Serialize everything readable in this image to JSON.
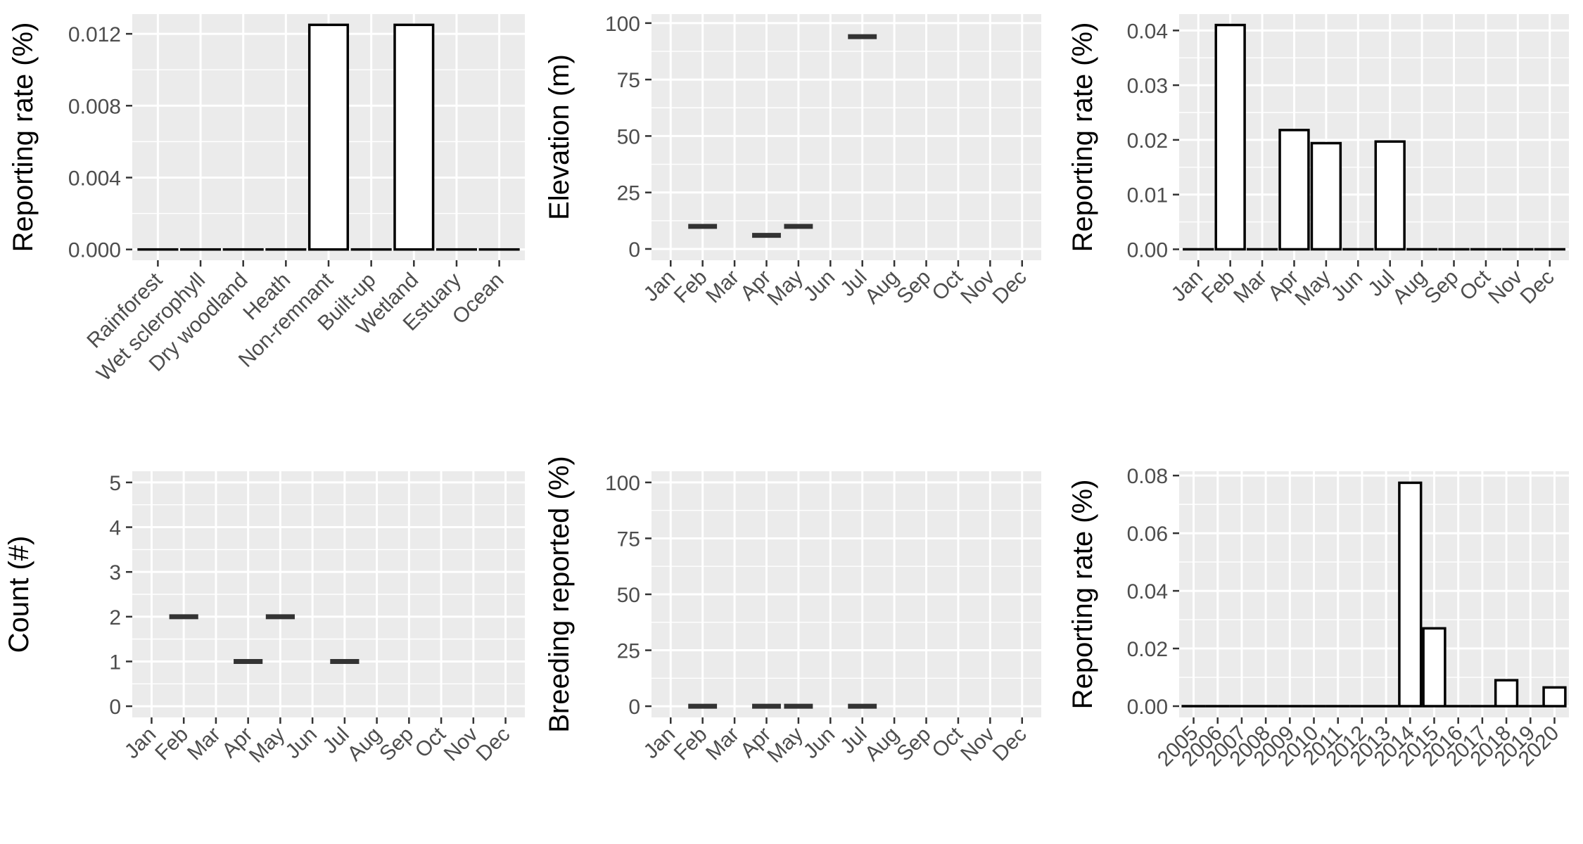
{
  "chart_data": [
    {
      "id": "p1",
      "type": "bar",
      "ylabel": "Reporting rate (%)",
      "categories": [
        "Rainforest",
        "Wet sclerophyll",
        "Dry woodland",
        "Heath",
        "Non-remnant",
        "Built-up",
        "Wetland",
        "Estuary",
        "Ocean"
      ],
      "values": [
        0,
        0,
        0,
        0,
        0.0125,
        0,
        0.0125,
        0,
        0
      ],
      "ylim": [
        -0.0006,
        0.0131
      ],
      "yticks": [
        0.0,
        0.004,
        0.008,
        0.012
      ],
      "ytick_labels": [
        "0.000",
        "0.004",
        "0.008",
        "0.012"
      ],
      "grid": true
    },
    {
      "id": "p2",
      "type": "scatter",
      "marker": "crossbar",
      "ylabel": "Elevation (m)",
      "categories": [
        "Jan",
        "Feb",
        "Mar",
        "Apr",
        "May",
        "Jun",
        "Jul",
        "Aug",
        "Sep",
        "Oct",
        "Nov",
        "Dec"
      ],
      "values": [
        null,
        10,
        null,
        6,
        10,
        null,
        94,
        null,
        null,
        null,
        null,
        null
      ],
      "ylim": [
        -5,
        104
      ],
      "yticks": [
        0,
        25,
        50,
        75,
        100
      ],
      "ytick_labels": [
        "0",
        "25",
        "50",
        "75",
        "100"
      ],
      "grid": true
    },
    {
      "id": "p3",
      "type": "bar",
      "ylabel": "Reporting rate (%)",
      "categories": [
        "Jan",
        "Feb",
        "Mar",
        "Apr",
        "May",
        "Jun",
        "Jul",
        "Aug",
        "Sep",
        "Oct",
        "Nov",
        "Dec"
      ],
      "values": [
        0,
        0.041,
        0,
        0.0218,
        0.0194,
        0,
        0.0197,
        0,
        0,
        0,
        0,
        0
      ],
      "ylim": [
        -0.002,
        0.043
      ],
      "yticks": [
        0.0,
        0.01,
        0.02,
        0.03,
        0.04
      ],
      "ytick_labels": [
        "0.00",
        "0.01",
        "0.02",
        "0.03",
        "0.04"
      ],
      "grid": true
    },
    {
      "id": "p4",
      "type": "scatter",
      "marker": "crossbar",
      "ylabel": "Count (#)",
      "categories": [
        "Jan",
        "Feb",
        "Mar",
        "Apr",
        "May",
        "Jun",
        "Jul",
        "Aug",
        "Sep",
        "Oct",
        "Nov",
        "Dec"
      ],
      "values": [
        null,
        2,
        null,
        1,
        2,
        null,
        1,
        null,
        null,
        null,
        null,
        null
      ],
      "ylim": [
        -0.25,
        5.25
      ],
      "yticks": [
        0,
        1,
        2,
        3,
        4,
        5
      ],
      "ytick_labels": [
        "0",
        "1",
        "2",
        "3",
        "4",
        "5"
      ],
      "grid": true
    },
    {
      "id": "p5",
      "type": "scatter",
      "marker": "crossbar",
      "ylabel": "Breeding reported (%)",
      "categories": [
        "Jan",
        "Feb",
        "Mar",
        "Apr",
        "May",
        "Jun",
        "Jul",
        "Aug",
        "Sep",
        "Oct",
        "Nov",
        "Dec"
      ],
      "values": [
        null,
        0,
        null,
        0,
        0,
        null,
        0,
        null,
        null,
        null,
        null,
        null
      ],
      "ylim": [
        -5,
        105
      ],
      "yticks": [
        0,
        25,
        50,
        75,
        100
      ],
      "ytick_labels": [
        "0",
        "25",
        "50",
        "75",
        "100"
      ],
      "grid": true
    },
    {
      "id": "p6",
      "type": "bar",
      "ylabel": "Reporting rate (%)",
      "categories": [
        "2005",
        "2006",
        "2007",
        "2008",
        "2009",
        "2010",
        "2011",
        "2012",
        "2013",
        "2014",
        "2015",
        "2016",
        "2017",
        "2018",
        "2019",
        "2020"
      ],
      "values": [
        0,
        0,
        0,
        0,
        0,
        0,
        0,
        0,
        0,
        0.0775,
        0.027,
        0,
        0,
        0.009,
        0,
        0.0065
      ],
      "ylim": [
        -0.0039,
        0.0815
      ],
      "yticks": [
        0.0,
        0.02,
        0.04,
        0.06,
        0.08
      ],
      "ytick_labels": [
        "0.00",
        "0.02",
        "0.04",
        "0.06",
        "0.08"
      ],
      "grid": true
    }
  ]
}
